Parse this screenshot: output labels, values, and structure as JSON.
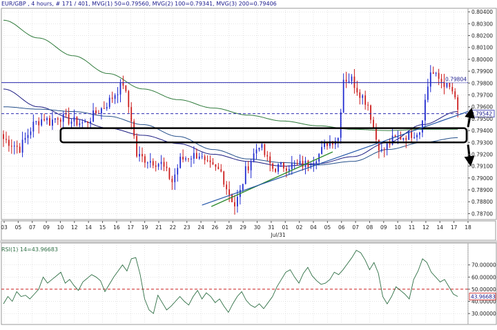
{
  "header": {
    "main": "EUR/GBP , 4 hours, # 171 / 401, MVG(1) 50=0.79560, MVG(2) 100=0.79341, MVG(3) 200=0.79406",
    "rsi": "RSI(1) 14=43.96683"
  },
  "colors": {
    "bull": "#1f2ad0",
    "bear": "#cc1b1b",
    "ma50": "#1a1a80",
    "ma100": "#244f8a",
    "ma200": "#2e7a3a",
    "trend_green": "#2e8b2e",
    "trend_blue": "#2255a8",
    "rsi_line": "#2f6f45",
    "ref_line": "#cc1b1b",
    "grid": "#c8c8c8"
  },
  "chart_data": [
    {
      "type": "candlestick",
      "symbol": "EUR/GBP",
      "timeframe": "4 hours",
      "ylim": [
        0.7865,
        0.8043
      ],
      "y_ticks": [
        "0.80400",
        "0.80300",
        "0.80200",
        "0.80100",
        "0.80000",
        "0.79900",
        "0.79800",
        "0.79700",
        "0.79600",
        "0.79500",
        "0.79400",
        "0.79300",
        "0.79200",
        "0.79100",
        "0.79000",
        "0.78900",
        "0.78800",
        "0.78700"
      ],
      "x_ticks": [
        "03",
        "05",
        "07",
        "09",
        "10",
        "12",
        "14",
        "15",
        "16",
        "17",
        "19",
        "21",
        "22",
        "23",
        "24",
        "26",
        "28",
        "29",
        "30",
        "31",
        "01",
        "02",
        "04",
        "05",
        "06",
        "07",
        "08",
        "09",
        "10",
        "11",
        "12",
        "14",
        "17",
        "18"
      ],
      "x_sub_label": "Jul/31",
      "price_labels": [
        "0.79804",
        "0.79542"
      ],
      "price_path": [
        [
          0,
          0.7933
        ],
        [
          6,
          0.7925
        ],
        [
          11,
          0.7945
        ],
        [
          15,
          0.7951
        ],
        [
          17,
          0.7947
        ],
        [
          20,
          0.7952
        ],
        [
          25,
          0.7948
        ],
        [
          30,
          0.7946
        ],
        [
          34,
          0.7955
        ],
        [
          37,
          0.796
        ],
        [
          40,
          0.7968
        ],
        [
          44,
          0.798
        ],
        [
          47,
          0.795
        ],
        [
          49,
          0.7919
        ],
        [
          52,
          0.7916
        ],
        [
          58,
          0.7912
        ],
        [
          62,
          0.7897
        ],
        [
          65,
          0.7915
        ],
        [
          68,
          0.7918
        ],
        [
          72,
          0.792
        ],
        [
          74,
          0.7912
        ],
        [
          80,
          0.7905
        ],
        [
          82,
          0.7892
        ],
        [
          85,
          0.7877
        ],
        [
          87,
          0.7888
        ],
        [
          89,
          0.7906
        ],
        [
          92,
          0.792
        ],
        [
          94,
          0.7929
        ],
        [
          97,
          0.7915
        ],
        [
          99,
          0.7908
        ],
        [
          103,
          0.791
        ],
        [
          108,
          0.7911
        ],
        [
          112,
          0.7912
        ],
        [
          116,
          0.792
        ],
        [
          119,
          0.793
        ],
        [
          123,
          0.7934
        ],
        [
          125,
          0.7984
        ],
        [
          128,
          0.7983
        ],
        [
          130,
          0.7975
        ],
        [
          134,
          0.7962
        ],
        [
          137,
          0.7933
        ],
        [
          139,
          0.7922
        ],
        [
          143,
          0.7932
        ],
        [
          147,
          0.7935
        ],
        [
          151,
          0.7938
        ],
        [
          153,
          0.794
        ],
        [
          155,
          0.7965
        ],
        [
          157,
          0.799
        ],
        [
          159,
          0.7985
        ],
        [
          162,
          0.798
        ],
        [
          165,
          0.7973
        ],
        [
          167,
          0.7956
        ]
      ],
      "series": [
        {
          "name": "MVG(1) 50",
          "last": 0.7956,
          "values": [
            0.7975,
            0.796,
            0.795,
            0.7942,
            0.7936,
            0.7929,
            0.792,
            0.7914,
            0.791,
            0.7912,
            0.7918,
            0.793,
            0.7945,
            0.7956
          ]
        },
        {
          "name": "MVG(2) 100",
          "last": 0.79341,
          "values": [
            0.796,
            0.7958,
            0.7956,
            0.7952,
            0.7945,
            0.7935,
            0.7924,
            0.7916,
            0.7913,
            0.7911,
            0.7914,
            0.7924,
            0.793,
            0.7934
          ]
        },
        {
          "name": "MVG(3) 200",
          "last": 0.79406,
          "values": [
            0.8033,
            0.8018,
            0.8003,
            0.7988,
            0.7975,
            0.7966,
            0.7959,
            0.7953,
            0.7948,
            0.7944,
            0.7941,
            0.794,
            0.7941,
            0.7941
          ]
        }
      ],
      "annotations": {
        "horizontal_levels": [
          0.79804,
          0.79542
        ],
        "support_zone": [
          0.793,
          0.7942
        ],
        "trendline_green": [
          [
            0.45,
            0.7876
          ],
          [
            0.71,
            0.7922
          ]
        ],
        "trendline_blue": [
          [
            0.43,
            0.7876
          ],
          [
            1.0,
            0.7956
          ]
        ]
      }
    },
    {
      "type": "line",
      "title": "RSI(1) 14=43.96683",
      "ylim": [
        21,
        88
      ],
      "y_ticks": [
        "70.00000",
        "60.00000",
        "50.00000",
        "40.00000",
        "30.00000"
      ],
      "current_label": "43.96683",
      "reference": 50,
      "values": [
        38,
        44,
        40,
        48,
        44,
        45,
        42,
        46,
        50,
        60,
        55,
        58,
        61,
        64,
        55,
        58,
        53,
        49,
        56,
        59,
        62,
        60,
        57,
        48,
        54,
        60,
        65,
        70,
        65,
        75,
        76,
        62,
        42,
        33,
        30,
        45,
        39,
        33,
        36,
        40,
        44,
        40,
        37,
        44,
        49,
        42,
        47,
        44,
        39,
        42,
        36,
        31,
        38,
        44,
        48,
        41,
        37,
        35,
        38,
        34,
        39,
        44,
        52,
        58,
        64,
        66,
        60,
        55,
        63,
        68,
        61,
        57,
        54,
        55,
        58,
        64,
        62,
        66,
        71,
        76,
        82,
        80,
        74,
        66,
        72,
        63,
        44,
        38,
        44,
        52,
        49,
        46,
        42,
        58,
        65,
        75,
        72,
        64,
        60,
        56,
        58,
        52,
        46,
        44
      ]
    }
  ]
}
